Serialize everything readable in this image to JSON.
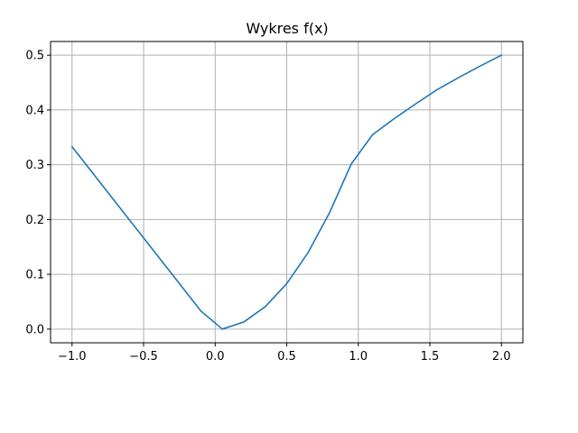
{
  "chart_data": {
    "type": "line",
    "title": "Wykres f(x)",
    "xlabel": "",
    "ylabel": "",
    "xlim": [
      -1.15,
      2.15
    ],
    "ylim": [
      -0.025,
      0.525
    ],
    "grid": true,
    "x_ticks": [
      -1.0,
      -0.5,
      0.0,
      0.5,
      1.0,
      1.5,
      2.0
    ],
    "x_tick_labels": [
      "−1.0",
      "−0.5",
      "0.0",
      "0.5",
      "1.0",
      "1.5",
      "2.0"
    ],
    "y_ticks": [
      0.0,
      0.1,
      0.2,
      0.3,
      0.4,
      0.5
    ],
    "y_tick_labels": [
      "0.0",
      "0.1",
      "0.2",
      "0.3",
      "0.4",
      "0.5"
    ],
    "series": [
      {
        "color": "#1f77b4",
        "x": [
          -1.0,
          -0.85,
          -0.7,
          -0.55,
          -0.4,
          -0.25,
          -0.1,
          0.05,
          0.2,
          0.35,
          0.5,
          0.65,
          0.8,
          0.95,
          1.1,
          1.25,
          1.4,
          1.55,
          1.7,
          1.85,
          2.0
        ],
        "y": [
          0.333,
          0.283,
          0.233,
          0.183,
          0.133,
          0.083,
          0.033,
          0.0,
          0.013,
          0.041,
          0.083,
          0.14,
          0.213,
          0.301,
          0.355,
          0.384,
          0.411,
          0.437,
          0.459,
          0.48,
          0.5
        ]
      }
    ]
  }
}
